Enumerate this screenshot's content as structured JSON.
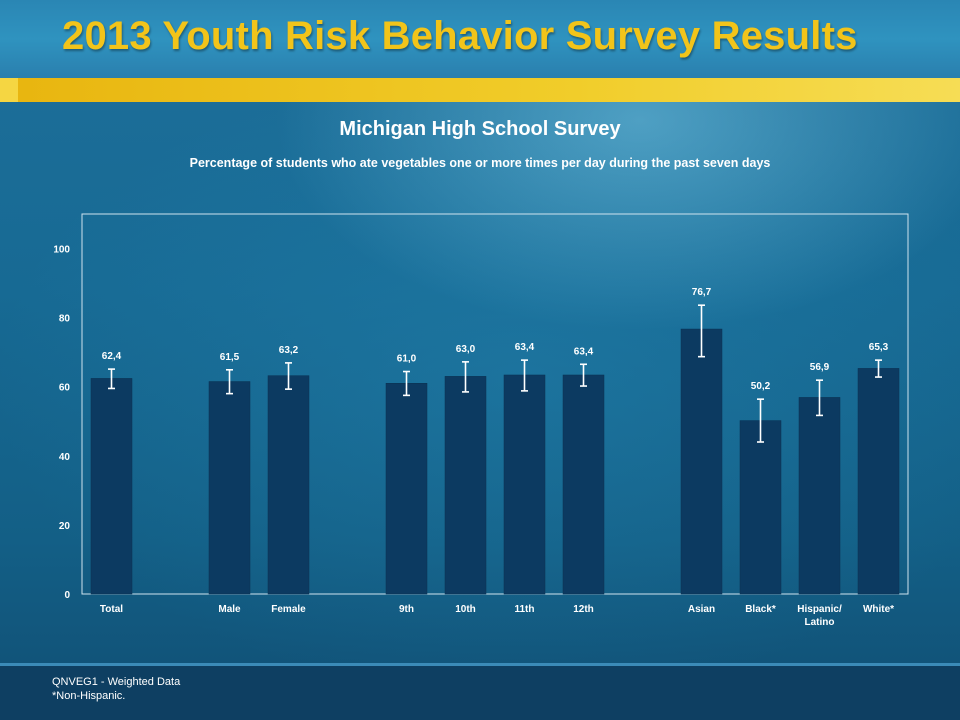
{
  "header": {
    "title": "2013 Youth Risk Behavior Survey Results"
  },
  "footer": {
    "note1": "QNVEG1 - Weighted Data",
    "note2": "*Non-Hispanic."
  },
  "colors": {
    "bar": "#0c3a61",
    "gold": "#f2c41a",
    "error_bar": "#ffffff"
  },
  "chart_data": {
    "type": "bar",
    "title": "Michigan High School Survey",
    "subtitle": "Percentage of students who ate vegetables one or more times per day during the past seven days",
    "xlabel": "",
    "ylabel": "",
    "ylim": [
      0,
      110
    ],
    "yticks": [
      0,
      20,
      40,
      60,
      80,
      100
    ],
    "grid": false,
    "categories": [
      "Total",
      "",
      "Male",
      "Female",
      "",
      "9th",
      "10th",
      "11th",
      "12th",
      "",
      "Asian",
      "Black*",
      "Hispanic/ Latino",
      "White*"
    ],
    "values": [
      62.4,
      null,
      61.5,
      63.2,
      null,
      61.0,
      63.0,
      63.4,
      63.4,
      null,
      76.7,
      50.2,
      56.9,
      65.3
    ],
    "value_labels": [
      "62,4",
      "",
      "61,5",
      "63,2",
      "",
      "61,0",
      "63,0",
      "63,4",
      "63,4",
      "",
      "76,7",
      "50,2",
      "56,9",
      "65,3"
    ],
    "ci_lower": [
      59.5,
      null,
      58.0,
      59.3,
      null,
      57.5,
      58.5,
      58.8,
      60.2,
      null,
      68.7,
      44.0,
      51.7,
      62.8
    ],
    "ci_upper": [
      65.1,
      null,
      64.9,
      66.9,
      null,
      64.4,
      67.2,
      67.7,
      66.5,
      null,
      83.6,
      56.4,
      61.9,
      67.7
    ]
  }
}
